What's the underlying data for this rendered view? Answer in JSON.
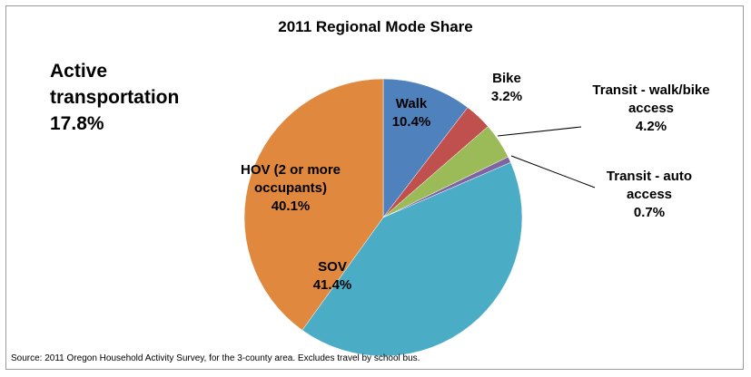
{
  "chart_data": {
    "type": "pie",
    "title": "2011 Regional Mode Share",
    "annotation": "Active transportation 17.8%",
    "source": "Source: 2011 Oregon Household Activity Survey, for the 3-county area. Excludes travel by school bus.",
    "categories": [
      "Walk",
      "Bike",
      "Transit - walk/bike access",
      "Transit - auto access",
      "SOV",
      "HOV (2 or more occupants)"
    ],
    "values": [
      10.4,
      3.2,
      4.2,
      0.7,
      41.4,
      40.1
    ],
    "value_labels": [
      "10.4%",
      "3.2%",
      "4.2%",
      "0.7%",
      "41.4%",
      "40.1%"
    ],
    "colors": [
      "#4f81bd",
      "#c0504d",
      "#9bbb59",
      "#8064a2",
      "#4bacc6",
      "#e0883e"
    ]
  }
}
